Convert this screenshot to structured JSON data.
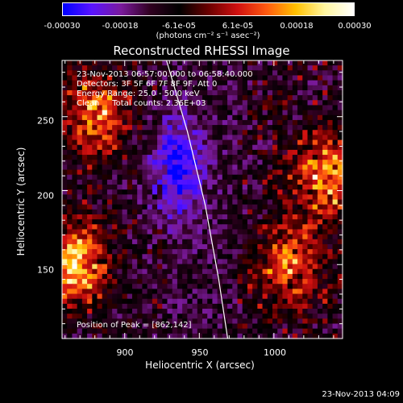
{
  "colorbar": {
    "ticks": [
      "-0.00030",
      "-0.00018",
      "-6.1e-05",
      "6.1e-05",
      "0.00018",
      "0.00030"
    ],
    "units": "(photons cm⁻² s⁻¹ asec⁻²)",
    "colors": [
      "#0000ff",
      "#5a14ff",
      "#7a1a9c",
      "#300020",
      "#000000",
      "#6a0000",
      "#d01010",
      "#ff5a10",
      "#ffc000",
      "#fff6a0",
      "#ffffff"
    ]
  },
  "title": "Reconstructed RHESSI Image",
  "info": {
    "time_range": "23-Nov-2013 06:57:00.000 to 06:58:40.000",
    "detectors": "Detectors: 3F 5F 6F 7F 8F 9F, Att 0",
    "energy": "Energy Range: 25.0 - 50.0 keV",
    "clean": "Clean     Total counts: 2.36E+03",
    "peak": "Position of Peak = [862,142]"
  },
  "axes": {
    "xlabel": "Heliocentric X (arcsec)",
    "ylabel": "Heliocentric Y (arcsec)",
    "xticks": [
      "900",
      "950",
      "1000"
    ],
    "yticks": [
      "150",
      "200",
      "250"
    ]
  },
  "footer": "23-Nov-2013 04:09",
  "chart_data": {
    "type": "heatmap",
    "title": "Reconstructed RHESSI Image",
    "xlabel": "Heliocentric X (arcsec)",
    "ylabel": "Heliocentric Y (arcsec)",
    "xlim": [
      858,
      1046
    ],
    "ylim": [
      100,
      288
    ],
    "xticks": [
      900,
      950,
      1000
    ],
    "yticks": [
      150,
      200,
      250
    ],
    "zlim": [
      -0.0003,
      0.0003
    ],
    "colorbar_ticks": [
      -0.0003,
      -0.00018,
      -6.1e-05,
      6.1e-05,
      0.00018,
      0.0003
    ],
    "peak": [
      862,
      142
    ],
    "limb_curve": [
      [
        928,
        288
      ],
      [
        942,
        240
      ],
      [
        954,
        190
      ],
      [
        963,
        140
      ],
      [
        969,
        100
      ]
    ],
    "sources": [
      {
        "x": 865,
        "y": 150,
        "peak": 0.0003
      },
      {
        "x": 880,
        "y": 250,
        "peak": 0.00022
      },
      {
        "x": 1035,
        "y": 210,
        "peak": 0.00024
      },
      {
        "x": 1010,
        "y": 150,
        "peak": 0.0002
      }
    ]
  }
}
